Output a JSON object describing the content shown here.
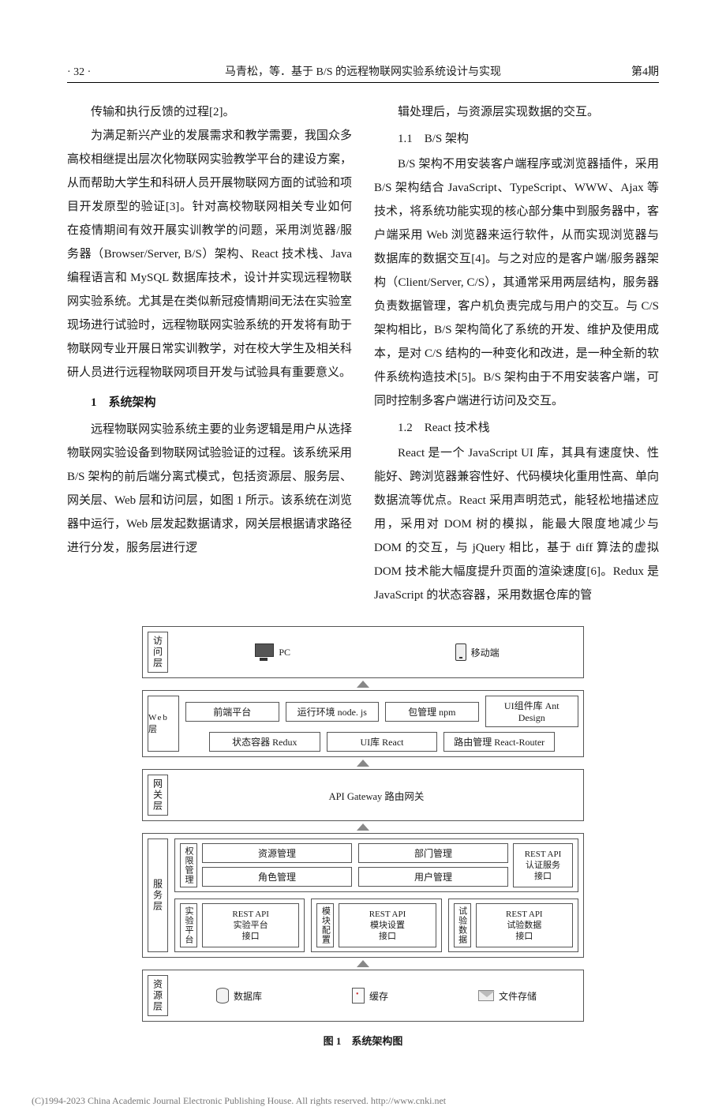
{
  "header": {
    "page": "· 32 ·",
    "running": "马青松，等．基于 B/S 的远程物联网实验系统设计与实现",
    "issue": "第4期"
  },
  "col_left": {
    "p1": "传输和执行反馈的过程[2]。",
    "p2": "为满足新兴产业的发展需求和教学需要，我国众多高校相继提出层次化物联网实验教学平台的建设方案，从而帮助大学生和科研人员开展物联网方面的试验和项目开发原型的验证[3]。针对高校物联网相关专业如何在疫情期间有效开展实训教学的问题，采用浏览器/服务器（Browser/Server, B/S）架构、React 技术栈、Java 编程语言和 MySQL 数据库技术，设计并实现远程物联网实验系统。尤其是在类似新冠疫情期间无法在实验室现场进行试验时，远程物联网实验系统的开发将有助于物联网专业开展日常实训教学，对在校大学生及相关科研人员进行远程物联网项目开发与试验具有重要意义。",
    "sec1": "1　系统架构",
    "p3": "远程物联网实验系统主要的业务逻辑是用户从选择物联网实验设备到物联网试验验证的过程。该系统采用 B/S 架构的前后端分离式模式，包括资源层、服务层、网关层、Web 层和访问层，如图 1 所示。该系统在浏览器中运行，Web 层发起数据请求，网关层根据请求路径进行分发，服务层进行逻"
  },
  "col_right": {
    "p1": "辑处理后，与资源层实现数据的交互。",
    "sub11": "1.1　B/S 架构",
    "p2": "B/S 架构不用安装客户端程序或浏览器插件，采用 B/S 架构结合 JavaScript、TypeScript、WWW、Ajax 等技术，将系统功能实现的核心部分集中到服务器中，客户端采用 Web 浏览器来运行软件，从而实现浏览器与数据库的数据交互[4]。与之对应的是客户端/服务器架构（Client/Server, C/S），其通常采用两层结构，服务器负责数据管理，客户机负责完成与用户的交互。与 C/S 架构相比，B/S 架构简化了系统的开发、维护及使用成本，是对 C/S 结构的一种变化和改进，是一种全新的软件系统构造技术[5]。B/S 架构由于不用安装客户端，可同时控制多客户端进行访问及交互。",
    "sub12": "1.2　React 技术栈",
    "p3": "React 是一个 JavaScript UI 库，其具有速度快、性能好、跨浏览器兼容性好、代码模块化重用性高、单向数据流等优点。React 采用声明范式，能轻松地描述应用，采用对 DOM 树的模拟，能最大限度地减少与 DOM 的交互，与 jQuery 相比，基于 diff 算法的虚拟 DOM 技术能大幅度提升页面的渲染速度[6]。Redux 是 JavaScript 的状态容器，采用数据仓库的管"
  },
  "diagram": {
    "caption": "图 1　系统架构图",
    "access": {
      "tag": "访问层",
      "pc": "PC",
      "mobile": "移动端"
    },
    "web": {
      "tag": "Web层",
      "row1": [
        "前端平台",
        "运行环境 node. js",
        "包管理 npm",
        "UI组件库 Ant Design"
      ],
      "row2": [
        "状态容器 Redux",
        "UI库 React",
        "路由管理 React-Router"
      ]
    },
    "gateway": {
      "tag": "网关层",
      "text": "API Gateway 路由网关"
    },
    "service": {
      "tag": "服务层",
      "perm": {
        "tag": "权限管理",
        "items": [
          "资源管理",
          "角色管理",
          "部门管理",
          "用户管理"
        ],
        "api": "REST API\n认证服务\n接口"
      },
      "mods": [
        {
          "tag": "实验平台",
          "api": "REST API\n实验平台\n接口"
        },
        {
          "tag": "模块配置",
          "api": "REST API\n模块设置\n接口"
        },
        {
          "tag": "试验数据",
          "api": "REST API\n试验数据\n接口"
        }
      ]
    },
    "resource": {
      "tag": "资源层",
      "db": "数据库",
      "cache": "缓存",
      "file": "文件存储"
    }
  },
  "footer": "(C)1994-2023 China Academic Journal Electronic Publishing House. All rights reserved.    http://www.cnki.net"
}
